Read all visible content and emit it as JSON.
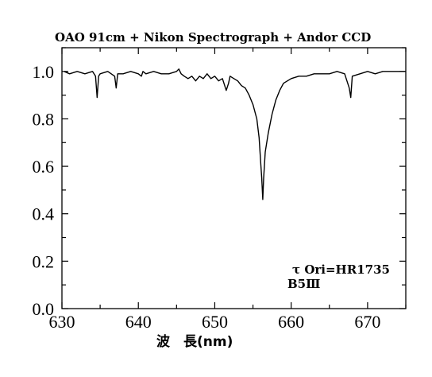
{
  "chart_data": {
    "type": "line",
    "title": "OAO 91cm + Nikon Spectrograph + Andor CCD",
    "xlabel": "波　長(nm)",
    "ylabel": "",
    "xlim": [
      630,
      675
    ],
    "ylim": [
      0.0,
      1.1
    ],
    "xticks": [
      "630",
      "640",
      "650",
      "660",
      "670"
    ],
    "yticks": [
      "0.0",
      "0.2",
      "0.4",
      "0.6",
      "0.8",
      "1.0"
    ],
    "annotations": [
      "τ Ori=HR1735",
      "B5Ⅲ"
    ],
    "grid": false,
    "series": [
      {
        "x": [
          630.3,
          631.0,
          632.0,
          633.0,
          634.0,
          634.4,
          634.6,
          634.8,
          635.0,
          636.0,
          636.9,
          637.1,
          637.3,
          638.0,
          639.0,
          640.0,
          640.4,
          640.6,
          641.0,
          642.0,
          643.0,
          644.0,
          645.0,
          645.3,
          645.6,
          646.0,
          646.5,
          647.0,
          647.5,
          648.0,
          648.5,
          649.0,
          649.5,
          650.0,
          650.5,
          651.0,
          651.5,
          651.8,
          652.0,
          652.5,
          653.0,
          653.5,
          654.0,
          654.5,
          655.0,
          655.5,
          655.8,
          656.0,
          656.15,
          656.28,
          656.4,
          656.6,
          657.0,
          657.5,
          658.0,
          658.5,
          659.0,
          660.0,
          661.0,
          662.0,
          663.0,
          664.0,
          665.0,
          666.0,
          667.0,
          667.6,
          667.8,
          668.0,
          669.0,
          670.0,
          671.0,
          672.0,
          673.0,
          674.0,
          675.0
        ],
        "values": [
          1.0,
          0.99,
          1.0,
          0.99,
          1.0,
          0.98,
          0.89,
          0.98,
          0.99,
          1.0,
          0.98,
          0.93,
          0.99,
          0.99,
          1.0,
          0.99,
          0.98,
          1.0,
          0.99,
          1.0,
          0.99,
          0.99,
          1.0,
          1.01,
          0.99,
          0.98,
          0.97,
          0.98,
          0.96,
          0.98,
          0.97,
          0.99,
          0.97,
          0.98,
          0.96,
          0.97,
          0.92,
          0.95,
          0.98,
          0.97,
          0.96,
          0.94,
          0.93,
          0.9,
          0.86,
          0.8,
          0.72,
          0.62,
          0.55,
          0.46,
          0.55,
          0.66,
          0.74,
          0.82,
          0.88,
          0.92,
          0.95,
          0.97,
          0.98,
          0.98,
          0.99,
          0.99,
          0.99,
          1.0,
          0.99,
          0.93,
          0.89,
          0.98,
          0.99,
          1.0,
          0.99,
          1.0,
          1.0,
          1.0,
          1.0
        ]
      }
    ]
  }
}
